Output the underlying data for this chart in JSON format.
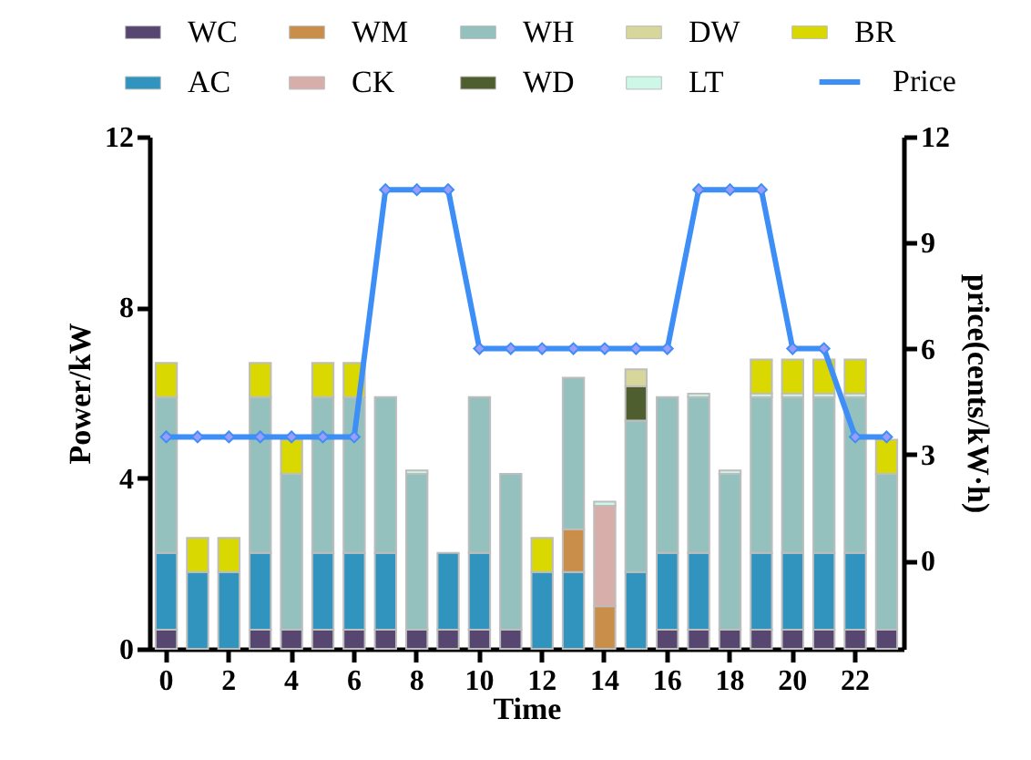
{
  "chart_data": {
    "type": "bar",
    "stacked": true,
    "xlabel": "Time",
    "ylabel": "Power/kW",
    "y2label": "price(cents/kW·h)",
    "categories": [
      "0",
      null,
      "2",
      null,
      "4",
      null,
      "6",
      null,
      "8",
      null,
      "10",
      null,
      "12",
      null,
      "14",
      null,
      "16",
      null,
      "18",
      null,
      "20",
      null,
      "22",
      null
    ],
    "ylim": [
      0,
      12
    ],
    "yticks": [
      0,
      4,
      8,
      12
    ],
    "y2lim": [
      -2.5,
      12
    ],
    "y2ticks": [
      0,
      3,
      6,
      9,
      12
    ],
    "grid": false,
    "legend": "top",
    "marker": "diamond",
    "line_style": "solid",
    "series": [
      {
        "name": "WC",
        "color": "#564670",
        "values": [
          0.45,
          null,
          null,
          0.45,
          0.45,
          0.45,
          0.45,
          0.45,
          0.45,
          0.45,
          0.45,
          0.45,
          null,
          null,
          null,
          null,
          0.45,
          0.45,
          0.45,
          0.45,
          0.45,
          0.45,
          0.45,
          0.45
        ]
      },
      {
        "name": "AC",
        "color": "#3194be",
        "values": [
          1.8,
          1.8,
          1.8,
          1.8,
          null,
          1.8,
          1.8,
          1.8,
          null,
          1.8,
          1.8,
          null,
          1.8,
          1.8,
          null,
          1.8,
          1.8,
          1.8,
          null,
          1.8,
          1.8,
          1.8,
          1.8,
          null
        ]
      },
      {
        "name": "WM",
        "color": "#c98f4a",
        "values": [
          null,
          null,
          null,
          null,
          null,
          null,
          null,
          null,
          null,
          null,
          null,
          null,
          null,
          1.0,
          1.0,
          null,
          null,
          null,
          null,
          null,
          null,
          null,
          null,
          null
        ]
      },
      {
        "name": "CK",
        "color": "#d8aeaa",
        "values": [
          null,
          null,
          null,
          null,
          null,
          null,
          null,
          null,
          null,
          null,
          null,
          null,
          null,
          null,
          2.35,
          null,
          null,
          null,
          null,
          null,
          null,
          null,
          null,
          null
        ]
      },
      {
        "name": "WH",
        "color": "#94c0bd",
        "values": [
          3.65,
          null,
          null,
          3.65,
          3.65,
          3.65,
          3.65,
          3.65,
          3.65,
          null,
          3.65,
          3.65,
          null,
          3.55,
          null,
          3.55,
          3.65,
          3.65,
          3.65,
          3.65,
          3.65,
          3.65,
          3.65,
          3.65
        ]
      },
      {
        "name": "WD",
        "color": "#4f5e2e",
        "values": [
          null,
          null,
          null,
          null,
          null,
          null,
          null,
          null,
          null,
          null,
          null,
          null,
          null,
          null,
          null,
          0.8,
          null,
          null,
          null,
          null,
          null,
          null,
          null,
          null
        ]
      },
      {
        "name": "DW",
        "color": "#d7d69b",
        "values": [
          null,
          null,
          null,
          null,
          null,
          null,
          null,
          null,
          null,
          null,
          null,
          null,
          null,
          null,
          null,
          0.4,
          null,
          null,
          null,
          null,
          null,
          null,
          null,
          null
        ]
      },
      {
        "name": "LT",
        "color": "#cdf7e6",
        "values": [
          null,
          null,
          null,
          null,
          null,
          null,
          null,
          null,
          0.08,
          null,
          null,
          null,
          null,
          null,
          0.1,
          null,
          null,
          0.08,
          0.08,
          0.08,
          0.08,
          0.08,
          0.08,
          null
        ]
      },
      {
        "name": "BR",
        "color": "#d9d800",
        "values": [
          0.8,
          0.8,
          0.8,
          0.8,
          0.8,
          0.8,
          0.8,
          null,
          null,
          null,
          null,
          null,
          0.8,
          null,
          null,
          null,
          null,
          null,
          null,
          0.8,
          0.8,
          0.8,
          0.8,
          0.8
        ]
      },
      {
        "name": "Price",
        "type": "line",
        "axis": "y2",
        "color": "#3e8ef7",
        "values": [
          3.5,
          3.5,
          3.5,
          3.5,
          3.5,
          3.5,
          3.5,
          10.5,
          10.5,
          10.5,
          6,
          6,
          6,
          6,
          6,
          6,
          6,
          10.5,
          10.5,
          10.5,
          6,
          6,
          3.5,
          3.5
        ]
      }
    ]
  }
}
